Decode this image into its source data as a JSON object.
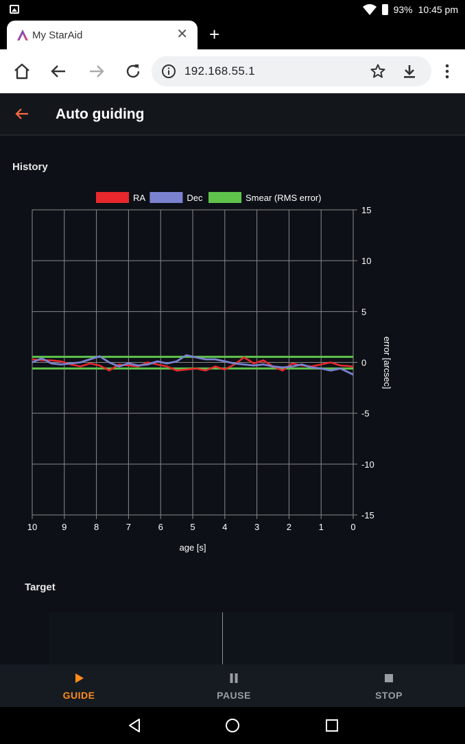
{
  "status_bar": {
    "battery": "93%",
    "time": "10:45 pm"
  },
  "browser": {
    "tab_title": "My StarAid",
    "url": "192.168.55.1"
  },
  "app": {
    "title": "Auto guiding"
  },
  "history": {
    "section_title": "History"
  },
  "target": {
    "section_title": "Target"
  },
  "bottom_nav": {
    "items": [
      {
        "label": "GUIDE",
        "icon": "play-icon",
        "active": true
      },
      {
        "label": "PAUSE",
        "icon": "pause-icon",
        "active": false
      },
      {
        "label": "STOP",
        "icon": "stop-icon",
        "active": false
      }
    ]
  },
  "colors": {
    "accent": "#ff8c1a",
    "ra": "#e8282c",
    "dec": "#7b82cf",
    "smear": "#5fc24b"
  },
  "chart_data": {
    "type": "line",
    "xlabel": "age [s]",
    "ylabel": "error [arcsec]",
    "xlim": [
      10,
      0
    ],
    "ylim": [
      -15,
      15
    ],
    "x_ticks": [
      "10",
      "9",
      "8",
      "7",
      "6",
      "5",
      "4",
      "3",
      "2",
      "1",
      "0"
    ],
    "y_ticks": [
      "15",
      "10",
      "5",
      "0",
      "-5",
      "-10",
      "-15"
    ],
    "grid": true,
    "legend_position": "top",
    "series": [
      {
        "name": "RA",
        "color": "#e8282c",
        "x": [
          10,
          9.7,
          9.4,
          9.1,
          8.8,
          8.5,
          8.2,
          7.9,
          7.6,
          7.3,
          7.0,
          6.7,
          6.4,
          6.1,
          5.8,
          5.5,
          5.2,
          4.9,
          4.6,
          4.3,
          4.0,
          3.7,
          3.4,
          3.1,
          2.8,
          2.5,
          2.2,
          1.9,
          1.6,
          1.3,
          1.0,
          0.7,
          0.4,
          0
        ],
        "values": [
          0.3,
          0.2,
          0.2,
          0.1,
          -0.2,
          -0.4,
          -0.1,
          -0.3,
          -0.8,
          -0.2,
          -0.3,
          -0.4,
          0.0,
          -0.2,
          -0.4,
          -0.8,
          -0.7,
          -0.6,
          -0.8,
          -0.4,
          -0.7,
          -0.2,
          0.5,
          -0.1,
          0.2,
          -0.4,
          -0.8,
          -0.1,
          -0.3,
          -0.4,
          -0.2,
          0.0,
          -0.3,
          -0.4
        ]
      },
      {
        "name": "Dec",
        "color": "#7b82cf",
        "x": [
          10,
          9.7,
          9.4,
          9.1,
          8.8,
          8.5,
          8.2,
          7.9,
          7.6,
          7.3,
          7.0,
          6.7,
          6.4,
          6.1,
          5.8,
          5.5,
          5.2,
          4.9,
          4.6,
          4.3,
          4.0,
          3.7,
          3.4,
          3.1,
          2.8,
          2.5,
          2.2,
          1.9,
          1.6,
          1.3,
          1.0,
          0.7,
          0.4,
          0
        ],
        "values": [
          0.0,
          0.4,
          -0.1,
          -0.2,
          -0.1,
          0.0,
          0.3,
          0.6,
          0.0,
          -0.4,
          -0.1,
          -0.3,
          -0.2,
          0.1,
          -0.1,
          0.1,
          0.7,
          0.5,
          0.3,
          0.3,
          0.1,
          -0.1,
          -0.2,
          -0.3,
          -0.2,
          -0.4,
          -0.5,
          -0.4,
          -0.2,
          -0.5,
          -0.6,
          -0.8,
          -0.6,
          -1.2
        ]
      },
      {
        "name": "Smear (RMS error)",
        "color": "#5fc24b",
        "bands": [
          0.55,
          -0.6
        ]
      }
    ]
  }
}
